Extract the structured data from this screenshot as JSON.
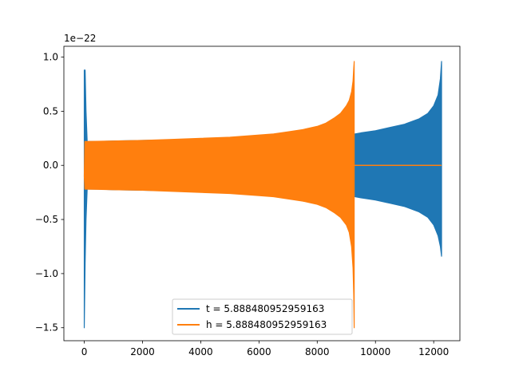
{
  "chart_data": {
    "type": "line",
    "title": "",
    "xlabel": "",
    "ylabel": "",
    "offset_text": "1e−22",
    "xlim": [
      -700,
      12900
    ],
    "ylim": [
      -1.62,
      1.1
    ],
    "x_ticks": [
      0,
      2000,
      4000,
      6000,
      8000,
      10000,
      12000
    ],
    "x_tick_labels": [
      "0",
      "2000",
      "4000",
      "6000",
      "8000",
      "10000",
      "12000"
    ],
    "y_ticks": [
      -1.5,
      -1.0,
      -0.5,
      0.0,
      0.5,
      1.0
    ],
    "y_tick_labels": [
      "−1.5",
      "−1.0",
      "−0.5",
      "0.0",
      "0.5",
      "1.0"
    ],
    "grid": false,
    "legend_position": "bottom-center",
    "series": [
      {
        "name": "t = 5.888480952959163",
        "color": "#1f77b4",
        "envelope": {
          "x": [
            0,
            30,
            60,
            100,
            500,
            1000,
            2000,
            3000,
            4000,
            5000,
            6000,
            7000,
            8000,
            8500,
            9000,
            9300,
            9500,
            10000,
            10500,
            11000,
            11500,
            11800,
            12000,
            12150,
            12230,
            12270
          ],
          "upper": [
            0.88,
            0.88,
            0.5,
            0.22,
            0.22,
            0.225,
            0.23,
            0.235,
            0.24,
            0.25,
            0.26,
            0.27,
            0.29,
            0.29,
            0.29,
            0.29,
            0.3,
            0.32,
            0.35,
            0.38,
            0.43,
            0.48,
            0.55,
            0.65,
            0.8,
            0.96
          ],
          "lower": [
            -1.5,
            -0.9,
            -0.5,
            -0.22,
            -0.22,
            -0.225,
            -0.23,
            -0.235,
            -0.24,
            -0.25,
            -0.26,
            -0.27,
            -0.29,
            -0.29,
            -0.29,
            -0.29,
            -0.3,
            -0.32,
            -0.35,
            -0.38,
            -0.43,
            -0.48,
            -0.55,
            -0.65,
            -0.75,
            -0.84
          ]
        }
      },
      {
        "name": "h = 5.888480952959163",
        "color": "#ff7f0e",
        "envelope": {
          "x": [
            0,
            20,
            60,
            100,
            1000,
            2000,
            3000,
            4000,
            5000,
            6000,
            6500,
            7000,
            7500,
            8000,
            8300,
            8600,
            8800,
            9000,
            9100,
            9180,
            9230,
            9255,
            9270
          ],
          "upper": [
            -0.1,
            0.22,
            0.22,
            0.22,
            0.225,
            0.23,
            0.24,
            0.25,
            0.26,
            0.28,
            0.29,
            0.31,
            0.33,
            0.36,
            0.39,
            0.44,
            0.48,
            0.55,
            0.6,
            0.68,
            0.78,
            0.9,
            0.96
          ],
          "lower": [
            -0.1,
            -0.22,
            -0.22,
            -0.22,
            -0.225,
            -0.23,
            -0.24,
            -0.25,
            -0.26,
            -0.28,
            -0.29,
            -0.31,
            -0.33,
            -0.36,
            -0.39,
            -0.44,
            -0.48,
            -0.55,
            -0.62,
            -0.75,
            -0.95,
            -1.2,
            -1.5
          ]
        },
        "flat_segment": {
          "x": [
            9270,
            12270
          ],
          "y": 0.0
        }
      }
    ]
  }
}
